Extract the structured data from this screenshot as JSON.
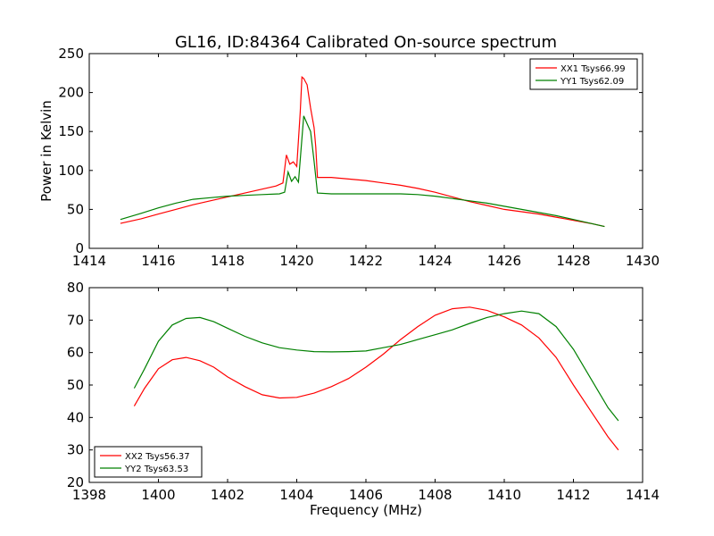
{
  "figure": {
    "title": "GL16, ID:84364 Calibrated On-source spectrum"
  },
  "chart_data": [
    {
      "type": "line",
      "ylabel": "Power in Kelvin",
      "xlabel": "",
      "xlim": [
        1414,
        1430
      ],
      "ylim": [
        0,
        250
      ],
      "xticks": [
        1414,
        1416,
        1418,
        1420,
        1422,
        1424,
        1426,
        1428,
        1430
      ],
      "yticks": [
        0,
        50,
        100,
        150,
        200,
        250
      ],
      "grid": false,
      "legend_position": "top-right",
      "series": [
        {
          "name": "XX1 Tsys66.99",
          "color": "#ff0000",
          "x": [
            1414.9,
            1415.5,
            1416.0,
            1416.5,
            1417.0,
            1417.5,
            1418.0,
            1418.5,
            1419.0,
            1419.4,
            1419.6,
            1419.7,
            1419.8,
            1419.9,
            1420.0,
            1420.1,
            1420.15,
            1420.2,
            1420.3,
            1420.4,
            1420.5,
            1420.55,
            1420.6,
            1421.0,
            1421.5,
            1422.0,
            1422.5,
            1423.0,
            1423.5,
            1424.0,
            1424.5,
            1425.0,
            1425.5,
            1426.0,
            1426.5,
            1427.0,
            1427.5,
            1428.0,
            1428.5,
            1428.9
          ],
          "y": [
            32,
            38,
            44,
            50,
            56,
            61,
            66,
            71,
            76,
            80,
            84,
            120,
            108,
            111,
            105,
            175,
            220,
            218,
            210,
            180,
            155,
            130,
            91,
            91,
            89,
            87,
            84,
            81,
            77,
            72,
            66,
            60,
            55,
            50,
            47,
            44,
            40,
            36,
            32,
            28
          ]
        },
        {
          "name": "YY1 Tsys62.09",
          "color": "#008000",
          "x": [
            1414.9,
            1415.5,
            1416.0,
            1416.5,
            1417.0,
            1417.5,
            1418.0,
            1418.5,
            1419.0,
            1419.5,
            1419.65,
            1419.75,
            1419.85,
            1419.95,
            1420.05,
            1420.2,
            1420.3,
            1420.4,
            1420.5,
            1420.6,
            1421.0,
            1421.5,
            1422.0,
            1422.5,
            1423.0,
            1423.5,
            1424.0,
            1424.5,
            1425.0,
            1425.5,
            1426.0,
            1426.5,
            1427.0,
            1427.5,
            1428.0,
            1428.5,
            1428.9
          ],
          "y": [
            37,
            45,
            52,
            58,
            63,
            65,
            67,
            68,
            69,
            70,
            72,
            98,
            86,
            92,
            85,
            170,
            160,
            150,
            112,
            71,
            70,
            70,
            70,
            70,
            70,
            69,
            67,
            64,
            61,
            58,
            54,
            50,
            46,
            42,
            37,
            32,
            28
          ]
        }
      ]
    },
    {
      "type": "line",
      "ylabel": "",
      "xlabel": "Frequency (MHz)",
      "xlim": [
        1398,
        1414
      ],
      "ylim": [
        20,
        80
      ],
      "xticks": [
        1398,
        1400,
        1402,
        1404,
        1406,
        1408,
        1410,
        1412,
        1414
      ],
      "yticks": [
        20,
        30,
        40,
        50,
        60,
        70,
        80
      ],
      "grid": false,
      "legend_position": "bottom-left",
      "series": [
        {
          "name": "XX2 Tsys56.37",
          "color": "#ff0000",
          "x": [
            1399.3,
            1399.6,
            1400.0,
            1400.4,
            1400.8,
            1401.2,
            1401.6,
            1402.0,
            1402.5,
            1403.0,
            1403.5,
            1404.0,
            1404.5,
            1405.0,
            1405.5,
            1406.0,
            1406.5,
            1407.0,
            1407.5,
            1408.0,
            1408.5,
            1409.0,
            1409.5,
            1410.0,
            1410.5,
            1411.0,
            1411.5,
            1412.0,
            1412.5,
            1413.0,
            1413.3
          ],
          "y": [
            43.5,
            49,
            55,
            57.8,
            58.5,
            57.5,
            55.5,
            52.5,
            49.5,
            47,
            46,
            46.2,
            47.5,
            49.5,
            52,
            55.5,
            59.5,
            64,
            68,
            71.5,
            73.5,
            74,
            73,
            71,
            68.5,
            64.5,
            58.5,
            50,
            42,
            34,
            30
          ]
        },
        {
          "name": "YY2 Tsys63.53",
          "color": "#008000",
          "x": [
            1399.3,
            1399.6,
            1400.0,
            1400.4,
            1400.8,
            1401.2,
            1401.6,
            1402.0,
            1402.5,
            1403.0,
            1403.5,
            1404.0,
            1404.5,
            1405.0,
            1405.5,
            1406.0,
            1406.5,
            1407.0,
            1407.5,
            1408.0,
            1408.5,
            1409.0,
            1409.5,
            1410.0,
            1410.5,
            1411.0,
            1411.5,
            1412.0,
            1412.5,
            1413.0,
            1413.3
          ],
          "y": [
            49,
            55,
            63.5,
            68.5,
            70.5,
            70.8,
            69.5,
            67.5,
            65,
            63,
            61.5,
            60.8,
            60.3,
            60.2,
            60.3,
            60.5,
            61.5,
            62.5,
            64,
            65.5,
            67,
            69,
            70.8,
            72,
            72.8,
            72,
            68,
            61,
            52,
            43,
            39
          ]
        }
      ]
    }
  ]
}
